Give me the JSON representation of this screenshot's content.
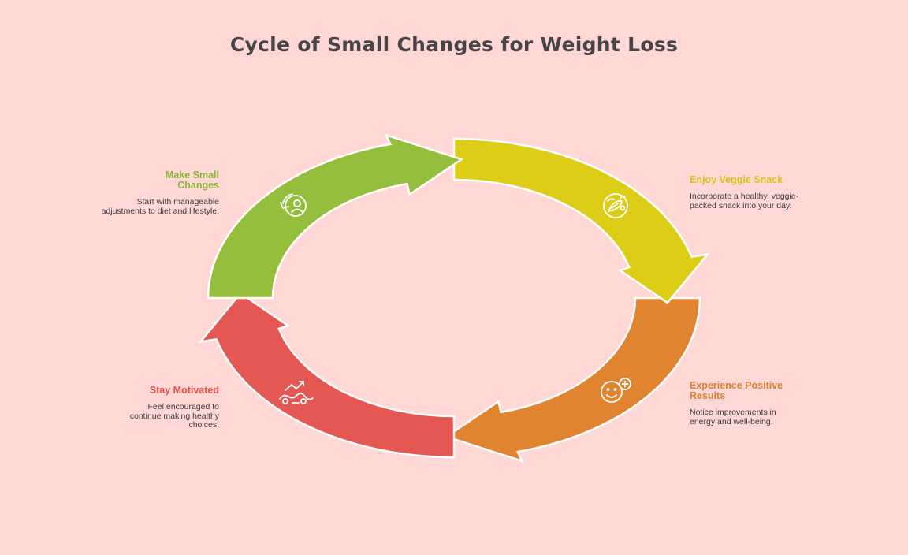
{
  "title": "Cycle of Small Changes for Weight Loss",
  "steps": [
    {
      "heading": "Make Small Changes",
      "description": "Start with manageable adjustments to diet and lifestyle.",
      "color": "#94BE3B",
      "icon": "refresh-person-icon"
    },
    {
      "heading": "Enjoy Veggie Snack",
      "description": "Incorporate a healthy, veggie-packed snack into your day.",
      "color": "#DDCD17",
      "icon": "vegetable-icon"
    },
    {
      "heading": "Experience Positive Results",
      "description": "Notice improvements in energy and well-being.",
      "color": "#E08430",
      "icon": "smile-plus-icon"
    },
    {
      "heading": "Stay Motivated",
      "description": "Feel encouraged to continue making healthy choices.",
      "color": "#E55752",
      "icon": "growth-chart-icon"
    }
  ]
}
